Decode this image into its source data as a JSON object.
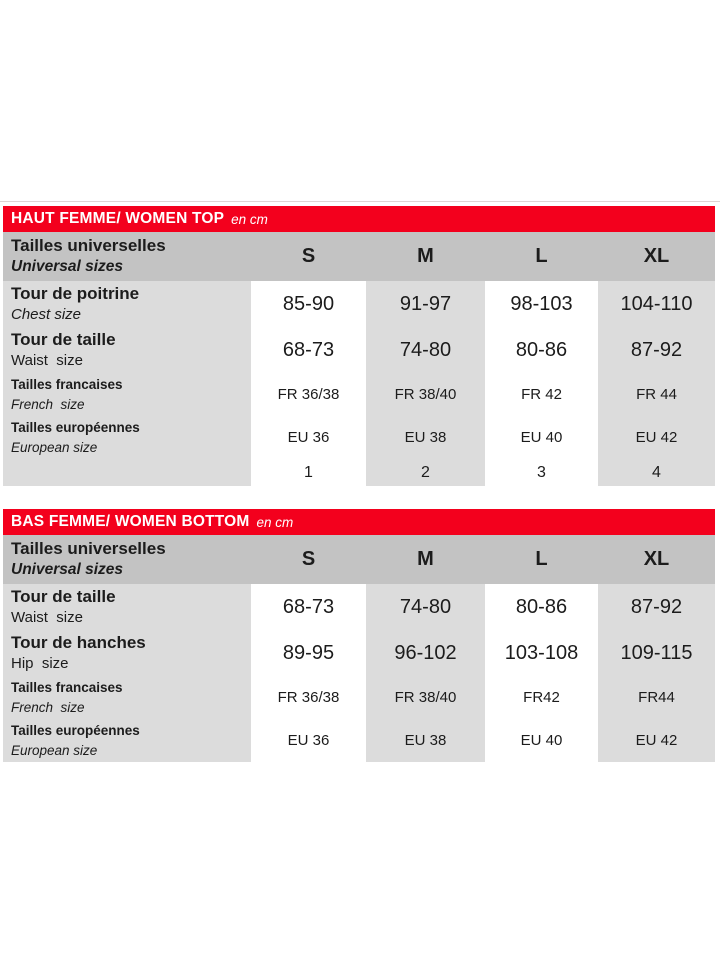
{
  "colors": {
    "bar_red": "#f3001d",
    "header_gray": "#c3c3c3",
    "cell_gray": "#dcdcdc",
    "text": "#1c1c1c"
  },
  "tables": [
    {
      "id": "women-top",
      "title": "HAUT FEMME/ WOMEN TOP",
      "unit": "en cm",
      "size_header": {
        "fr": "Tailles universelles",
        "en": "Universal sizes",
        "sizes": [
          "S",
          "M",
          "L",
          "XL"
        ]
      },
      "rows": [
        {
          "fr": "Tour de poitrine",
          "en": "Chest size",
          "en_italic": true,
          "style": "large",
          "values": [
            "85-90",
            "91-97",
            "98-103",
            "104-110"
          ]
        },
        {
          "fr": "Tour de taille",
          "en": "Waist  size",
          "en_italic": false,
          "style": "large",
          "values": [
            "68-73",
            "74-80",
            "80-86",
            "87-92"
          ]
        },
        {
          "fr": "Tailles francaises",
          "en": "French  size",
          "en_italic": true,
          "style": "small",
          "values": [
            "FR 36/38",
            "FR 38/40",
            "FR 42",
            "FR 44"
          ]
        },
        {
          "fr": "Tailles européennes",
          "en": "European size",
          "en_italic": true,
          "style": "small",
          "values": [
            "EU 36",
            "EU 38",
            "EU 40",
            "EU 42"
          ]
        },
        {
          "fr": "",
          "en": "",
          "en_italic": false,
          "style": "numbers",
          "values": [
            "1",
            "2",
            "3",
            "4"
          ]
        }
      ]
    },
    {
      "id": "women-bottom",
      "title": "BAS FEMME/ WOMEN BOTTOM",
      "unit": "en cm",
      "size_header": {
        "fr": "Tailles universelles",
        "en": "Universal sizes",
        "sizes": [
          "S",
          "M",
          "L",
          "XL"
        ]
      },
      "rows": [
        {
          "fr": "Tour de taille",
          "en": "Waist  size",
          "en_italic": false,
          "style": "large",
          "values": [
            "68-73",
            "74-80",
            "80-86",
            "87-92"
          ]
        },
        {
          "fr": "Tour de hanches",
          "en": "Hip  size",
          "en_italic": false,
          "style": "large",
          "values": [
            "89-95",
            "96-102",
            "103-108",
            "109-115"
          ]
        },
        {
          "fr": "Tailles francaises",
          "en": "French  size",
          "en_italic": true,
          "style": "small",
          "values": [
            "FR 36/38",
            "FR 38/40",
            "FR42",
            "FR44"
          ]
        },
        {
          "fr": "Tailles européennes",
          "en": "European size",
          "en_italic": true,
          "style": "small",
          "values": [
            "EU 36",
            "EU 38",
            "EU 40",
            "EU 42"
          ]
        }
      ]
    }
  ]
}
